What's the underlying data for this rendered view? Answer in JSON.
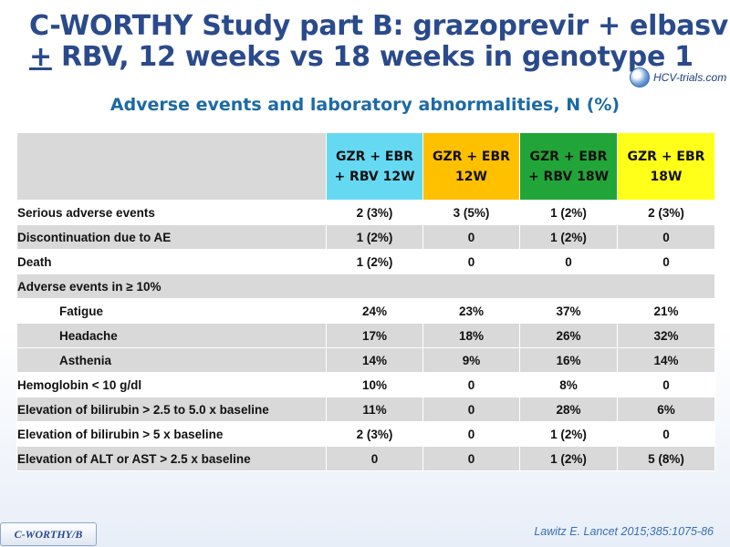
{
  "slide": {
    "title_line1": "C-WORTHY Study part B: grazoprevir + elbasvir",
    "title_pm": "+",
    "title_line2_rest": " RBV, 12 weeks vs 18 weeks in genotype 1",
    "logo_text": "HCV-trials.com",
    "subtitle": "Adverse events and laboratory abnormalities, N (%)",
    "reference": "Lawitz E. Lancet 2015;385:1075-86",
    "tag": "C-WORTHY/B",
    "colors": {
      "title": "#2a4a8b",
      "subtitle": "#1c6aa5",
      "group1": "#66d9f2",
      "group2": "#ffc000",
      "group3": "#22a538",
      "group4": "#ffff1a",
      "row_shade": "#d9d9d9"
    }
  },
  "table": {
    "headers": [
      {
        "line1": "GZR + EBR",
        "line2": "+ RBV 12W"
      },
      {
        "line1": "GZR + EBR",
        "line2": "12W"
      },
      {
        "line1": "GZR + EBR",
        "line2": "+ RBV 18W"
      },
      {
        "line1": "GZR + EBR",
        "line2": "18W"
      }
    ],
    "rows": [
      {
        "label": "Serious adverse events",
        "values": [
          "2 (3%)",
          "3 (5%)",
          "1 (2%)",
          "2 (3%)"
        ]
      },
      {
        "label": "Discontinuation due to AE",
        "values": [
          "1 (2%)",
          "0",
          "1 (2%)",
          "0"
        ]
      },
      {
        "label": "Death",
        "values": [
          "1 (2%)",
          "0",
          "0",
          "0"
        ]
      },
      {
        "label": "Adverse events in ≥ 10%",
        "values": [
          "",
          "",
          "",
          ""
        ]
      },
      {
        "label": "Fatigue",
        "values": [
          "24%",
          "23%",
          "37%",
          "21%"
        ]
      },
      {
        "label": "Headache",
        "values": [
          "17%",
          "18%",
          "26%",
          "32%"
        ]
      },
      {
        "label": "Asthenia",
        "values": [
          "14%",
          "9%",
          "16%",
          "14%"
        ]
      },
      {
        "label": "Hemoglobin < 10 g/dl",
        "values": [
          "10%",
          "0",
          "8%",
          "0"
        ]
      },
      {
        "label": "Elevation of bilirubin > 2.5 to 5.0 x baseline",
        "values": [
          "11%",
          "0",
          "28%",
          "6%"
        ]
      },
      {
        "label": "Elevation of bilirubin > 5 x baseline",
        "values": [
          "2 (3%)",
          "0",
          "1 (2%)",
          "0"
        ]
      },
      {
        "label": "Elevation of ALT or AST > 2.5 x baseline",
        "values": [
          "0",
          "0",
          "1 (2%)",
          "5 (8%)"
        ]
      }
    ]
  }
}
